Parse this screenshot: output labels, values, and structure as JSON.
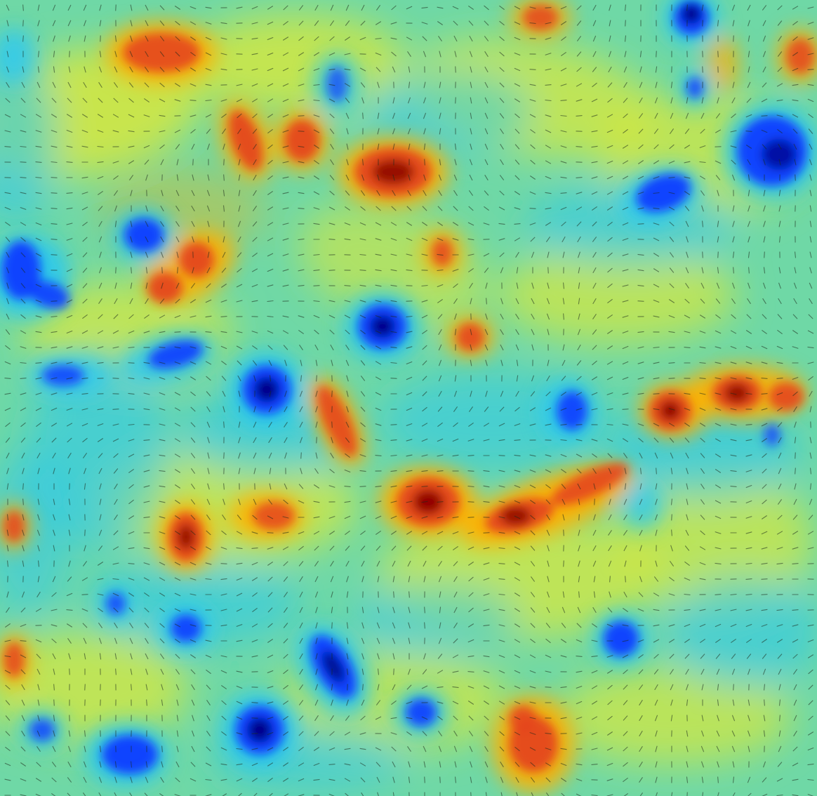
{
  "image": {
    "subject": "vorticity-field-with-velocity-arrows",
    "colormap": [
      "#00007f",
      "#0a3cff",
      "#2ac8f0",
      "#6fd8a6",
      "#d8e83c",
      "#ffb000",
      "#e4461e",
      "#8b0000"
    ],
    "background_color": "#6fd8a6",
    "arrow_color": "#1c2a1c"
  }
}
